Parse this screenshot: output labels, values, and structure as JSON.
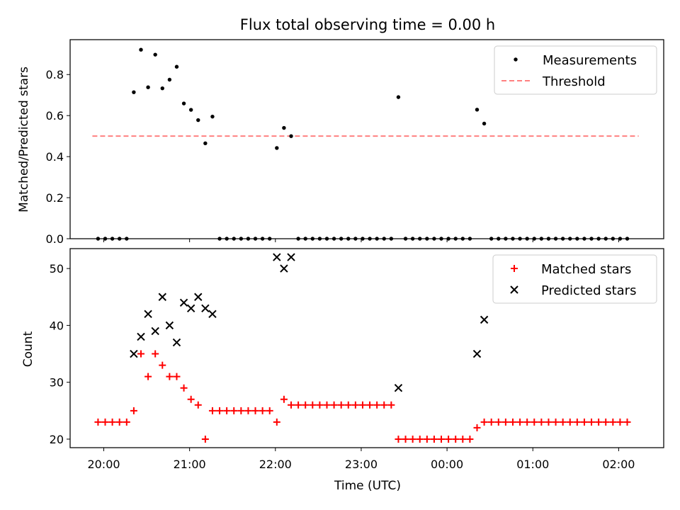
{
  "figure_title": "Flux total observing time = 0.00 h",
  "colors": {
    "measurement": "#000000",
    "threshold": "#ff8080",
    "matched": "#ff0000",
    "predicted": "#000000"
  },
  "chart_data": [
    {
      "type": "scatter",
      "ylabel": "Matched/Predicted stars",
      "xlabel": "",
      "ylim": [
        0,
        0.97
      ],
      "y_ticks": [
        "0.0",
        "0.2",
        "0.4",
        "0.6",
        "0.8"
      ],
      "legend_position": "top-right",
      "legend": [
        "Measurements",
        "Threshold"
      ],
      "threshold": {
        "name": "Threshold",
        "value": 0.5,
        "x_range": [
          "19:56",
          "02:10"
        ],
        "style": "dashed"
      },
      "series": [
        {
          "name": "Measurements",
          "points": [
            [
              "19:56",
              0
            ],
            [
              "20:01",
              0
            ],
            [
              "20:06",
              0
            ],
            [
              "20:11",
              0
            ],
            [
              "20:16",
              0
            ],
            [
              "20:21",
              0.714
            ],
            [
              "20:26",
              0.921
            ],
            [
              "20:31",
              0.738
            ],
            [
              "20:36",
              0.897
            ],
            [
              "20:41",
              0.733
            ],
            [
              "20:46",
              0.775
            ],
            [
              "20:51",
              0.838
            ],
            [
              "20:56",
              0.659
            ],
            [
              "21:01",
              0.628
            ],
            [
              "21:06",
              0.578
            ],
            [
              "21:11",
              0.465
            ],
            [
              "21:16",
              0.595
            ],
            [
              "21:21",
              0
            ],
            [
              "21:26",
              0
            ],
            [
              "21:31",
              0
            ],
            [
              "21:36",
              0
            ],
            [
              "21:41",
              0
            ],
            [
              "21:46",
              0
            ],
            [
              "21:51",
              0
            ],
            [
              "21:56",
              0
            ],
            [
              "22:01",
              0.442
            ],
            [
              "22:06",
              0.54
            ],
            [
              "22:11",
              0.5
            ],
            [
              "22:16",
              0
            ],
            [
              "22:21",
              0
            ],
            [
              "22:26",
              0
            ],
            [
              "22:31",
              0
            ],
            [
              "22:36",
              0
            ],
            [
              "22:41",
              0
            ],
            [
              "22:46",
              0
            ],
            [
              "22:51",
              0
            ],
            [
              "22:56",
              0
            ],
            [
              "23:01",
              0
            ],
            [
              "23:06",
              0
            ],
            [
              "23:11",
              0
            ],
            [
              "23:16",
              0
            ],
            [
              "23:21",
              0
            ],
            [
              "23:26",
              0.69
            ],
            [
              "23:31",
              0
            ],
            [
              "23:36",
              0
            ],
            [
              "23:41",
              0
            ],
            [
              "23:46",
              0
            ],
            [
              "23:51",
              0
            ],
            [
              "23:56",
              0
            ],
            [
              "00:01",
              0
            ],
            [
              "00:06",
              0
            ],
            [
              "00:11",
              0
            ],
            [
              "00:16",
              0
            ],
            [
              "00:21",
              0.629
            ],
            [
              "00:26",
              0.561
            ],
            [
              "00:31",
              0
            ],
            [
              "00:36",
              0
            ],
            [
              "00:41",
              0
            ],
            [
              "00:46",
              0
            ],
            [
              "00:51",
              0
            ],
            [
              "00:56",
              0
            ],
            [
              "01:01",
              0
            ],
            [
              "01:06",
              0
            ],
            [
              "01:11",
              0
            ],
            [
              "01:16",
              0
            ],
            [
              "01:21",
              0
            ],
            [
              "01:26",
              0
            ],
            [
              "01:31",
              0
            ],
            [
              "01:36",
              0
            ],
            [
              "01:41",
              0
            ],
            [
              "01:46",
              0
            ],
            [
              "01:51",
              0
            ],
            [
              "01:56",
              0
            ],
            [
              "02:01",
              0
            ],
            [
              "02:06",
              0
            ]
          ]
        }
      ]
    },
    {
      "type": "scatter",
      "ylabel": "Count",
      "xlabel": "Time (UTC)",
      "ylim": [
        18.5,
        53.5
      ],
      "y_ticks": [
        "20",
        "30",
        "40",
        "50"
      ],
      "x_ticks": [
        "20:00",
        "21:00",
        "22:00",
        "23:00",
        "00:00",
        "01:00",
        "02:00"
      ],
      "legend_position": "top-right",
      "legend": [
        "Matched stars",
        "Predicted stars"
      ],
      "series": [
        {
          "name": "Matched stars",
          "marker": "plus",
          "points": [
            [
              "19:56",
              23
            ],
            [
              "20:01",
              23
            ],
            [
              "20:06",
              23
            ],
            [
              "20:11",
              23
            ],
            [
              "20:16",
              23
            ],
            [
              "20:21",
              25
            ],
            [
              "20:26",
              35
            ],
            [
              "20:31",
              31
            ],
            [
              "20:36",
              35
            ],
            [
              "20:41",
              33
            ],
            [
              "20:46",
              31
            ],
            [
              "20:51",
              31
            ],
            [
              "20:56",
              29
            ],
            [
              "21:01",
              27
            ],
            [
              "21:06",
              26
            ],
            [
              "21:11",
              20
            ],
            [
              "21:16",
              25
            ],
            [
              "21:21",
              25
            ],
            [
              "21:26",
              25
            ],
            [
              "21:31",
              25
            ],
            [
              "21:36",
              25
            ],
            [
              "21:41",
              25
            ],
            [
              "21:46",
              25
            ],
            [
              "21:51",
              25
            ],
            [
              "21:56",
              25
            ],
            [
              "22:01",
              23
            ],
            [
              "22:06",
              27
            ],
            [
              "22:11",
              26
            ],
            [
              "22:16",
              26
            ],
            [
              "22:21",
              26
            ],
            [
              "22:26",
              26
            ],
            [
              "22:31",
              26
            ],
            [
              "22:36",
              26
            ],
            [
              "22:41",
              26
            ],
            [
              "22:46",
              26
            ],
            [
              "22:51",
              26
            ],
            [
              "22:56",
              26
            ],
            [
              "23:01",
              26
            ],
            [
              "23:06",
              26
            ],
            [
              "23:11",
              26
            ],
            [
              "23:16",
              26
            ],
            [
              "23:21",
              26
            ],
            [
              "23:26",
              20
            ],
            [
              "23:31",
              20
            ],
            [
              "23:36",
              20
            ],
            [
              "23:41",
              20
            ],
            [
              "23:46",
              20
            ],
            [
              "23:51",
              20
            ],
            [
              "23:56",
              20
            ],
            [
              "00:01",
              20
            ],
            [
              "00:06",
              20
            ],
            [
              "00:11",
              20
            ],
            [
              "00:16",
              20
            ],
            [
              "00:21",
              22
            ],
            [
              "00:26",
              23
            ],
            [
              "00:31",
              23
            ],
            [
              "00:36",
              23
            ],
            [
              "00:41",
              23
            ],
            [
              "00:46",
              23
            ],
            [
              "00:51",
              23
            ],
            [
              "00:56",
              23
            ],
            [
              "01:01",
              23
            ],
            [
              "01:06",
              23
            ],
            [
              "01:11",
              23
            ],
            [
              "01:16",
              23
            ],
            [
              "01:21",
              23
            ],
            [
              "01:26",
              23
            ],
            [
              "01:31",
              23
            ],
            [
              "01:36",
              23
            ],
            [
              "01:41",
              23
            ],
            [
              "01:46",
              23
            ],
            [
              "01:51",
              23
            ],
            [
              "01:56",
              23
            ],
            [
              "02:01",
              23
            ],
            [
              "02:06",
              23
            ]
          ]
        },
        {
          "name": "Predicted stars",
          "marker": "x",
          "points": [
            [
              "20:21",
              35
            ],
            [
              "20:26",
              38
            ],
            [
              "20:31",
              42
            ],
            [
              "20:36",
              39
            ],
            [
              "20:41",
              45
            ],
            [
              "20:46",
              40
            ],
            [
              "20:51",
              37
            ],
            [
              "20:56",
              44
            ],
            [
              "21:01",
              43
            ],
            [
              "21:06",
              45
            ],
            [
              "21:11",
              43
            ],
            [
              "21:16",
              42
            ],
            [
              "22:01",
              52
            ],
            [
              "22:06",
              50
            ],
            [
              "22:11",
              52
            ],
            [
              "23:26",
              29
            ],
            [
              "00:21",
              35
            ],
            [
              "00:26",
              41
            ]
          ]
        }
      ]
    }
  ]
}
